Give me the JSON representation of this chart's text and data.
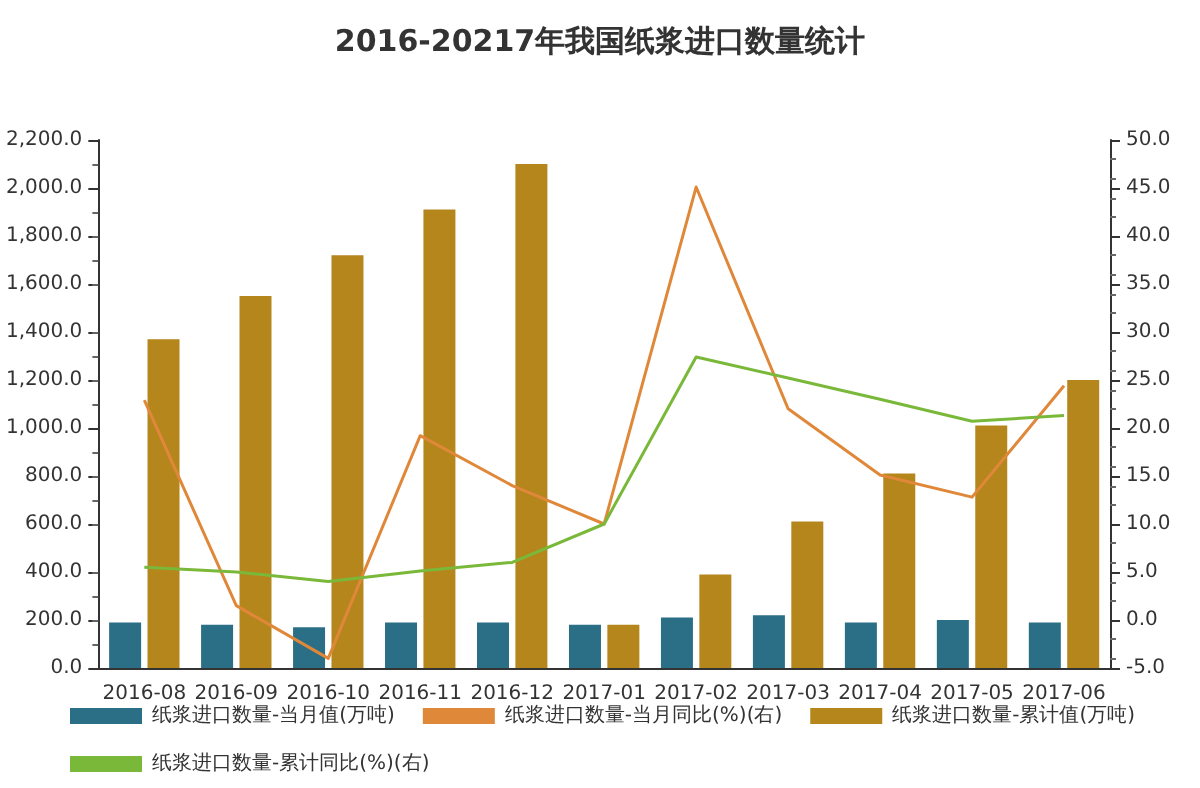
{
  "chart_data": {
    "type": "bar",
    "title": "2016-20217年我国纸浆进口数量统计",
    "categories": [
      "2016-08",
      "2016-09",
      "2016-10",
      "2016-11",
      "2016-12",
      "2017-01",
      "2017-02",
      "2017-03",
      "2017-04",
      "2017-05",
      "2017-06"
    ],
    "series": [
      {
        "name": "纸浆进口数量-当月值(万吨)",
        "color": "#2a6f85",
        "values": [
          190,
          180,
          170,
          190,
          190,
          180,
          210,
          220,
          190,
          200,
          190
        ]
      },
      {
        "name": "纸浆进口数量-当月同比(%)(右)",
        "type": "line",
        "axis": "y2",
        "color": "#e0883a",
        "values": [
          22.9,
          1.5,
          -4.0,
          19.2,
          14.0,
          10.0,
          45.1,
          22.0,
          15.1,
          12.8,
          24.4
        ]
      },
      {
        "name": "纸浆进口数量-累计值(万吨)",
        "color": "#b5861c",
        "values": [
          1370,
          1550,
          1720,
          1910,
          2100,
          180,
          390,
          610,
          810,
          1010,
          1200
        ]
      },
      {
        "name": "纸浆进口数量-累计同比(%)(右)",
        "type": "line",
        "axis": "y2",
        "color": "#7ab83a",
        "values": [
          5.5,
          5.0,
          4.0,
          5.1,
          6.0,
          10.0,
          27.4,
          25.2,
          23.0,
          20.7,
          21.3
        ]
      }
    ],
    "ylim": [
      0,
      2200
    ],
    "yticks": [
      {
        "value": 0,
        "label": "0.0"
      },
      {
        "value": 200,
        "label": "200.0"
      },
      {
        "value": 400,
        "label": "400.0"
      },
      {
        "value": 600,
        "label": "600.0"
      },
      {
        "value": 800,
        "label": "800.0"
      },
      {
        "value": 1000,
        "label": "1,000.0"
      },
      {
        "value": 1200,
        "label": "1,200.0"
      },
      {
        "value": 1400,
        "label": "1,400.0"
      },
      {
        "value": 1600,
        "label": "1,600.0"
      },
      {
        "value": 1800,
        "label": "1,800.0"
      },
      {
        "value": 2000,
        "label": "2,000.0"
      },
      {
        "value": 2200,
        "label": "2,200.0"
      }
    ],
    "y2lim": [
      -5,
      50
    ],
    "y2ticks": [
      {
        "value": -5,
        "label": "-5.0"
      },
      {
        "value": 0,
        "label": "0.0"
      },
      {
        "value": 5,
        "label": "5.0"
      },
      {
        "value": 10,
        "label": "10.0"
      },
      {
        "value": 15,
        "label": "15.0"
      },
      {
        "value": 20,
        "label": "20.0"
      },
      {
        "value": 25,
        "label": "25.0"
      },
      {
        "value": 30,
        "label": "30.0"
      },
      {
        "value": 35,
        "label": "35.0"
      },
      {
        "value": 40,
        "label": "40.0"
      },
      {
        "value": 45,
        "label": "45.0"
      },
      {
        "value": 50,
        "label": "50.0"
      }
    ],
    "grid": false,
    "legend": "bottom",
    "marker": "none"
  }
}
